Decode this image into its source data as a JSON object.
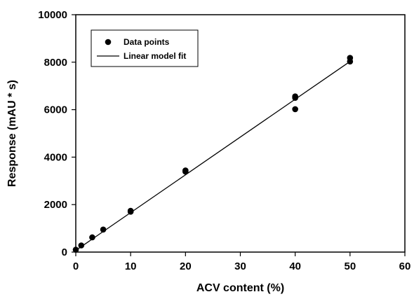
{
  "chart_data": {
    "type": "scatter",
    "xlabel": "ACV content (%)",
    "ylabel": "Response (mAU * s)",
    "xlim": [
      0,
      60
    ],
    "ylim": [
      0,
      10000
    ],
    "xticks": [
      0,
      10,
      20,
      30,
      40,
      50,
      60
    ],
    "yticks": [
      0,
      2000,
      4000,
      6000,
      8000,
      10000
    ],
    "grid": false,
    "legend_position": "top-left",
    "series": [
      {
        "name": "Data points",
        "kind": "scatter",
        "points": [
          {
            "x": 0,
            "y": 100
          },
          {
            "x": 1,
            "y": 280
          },
          {
            "x": 3,
            "y": 620
          },
          {
            "x": 5,
            "y": 950
          },
          {
            "x": 10,
            "y": 1700
          },
          {
            "x": 10,
            "y": 1740
          },
          {
            "x": 20,
            "y": 3390
          },
          {
            "x": 20,
            "y": 3440
          },
          {
            "x": 40,
            "y": 6020
          },
          {
            "x": 40,
            "y": 6500
          },
          {
            "x": 40,
            "y": 6560
          },
          {
            "x": 50,
            "y": 8030
          },
          {
            "x": 50,
            "y": 8180
          }
        ]
      },
      {
        "name": "Linear model fit",
        "kind": "line",
        "points": [
          {
            "x": 0,
            "y": 70
          },
          {
            "x": 50,
            "y": 8030
          }
        ]
      }
    ]
  }
}
